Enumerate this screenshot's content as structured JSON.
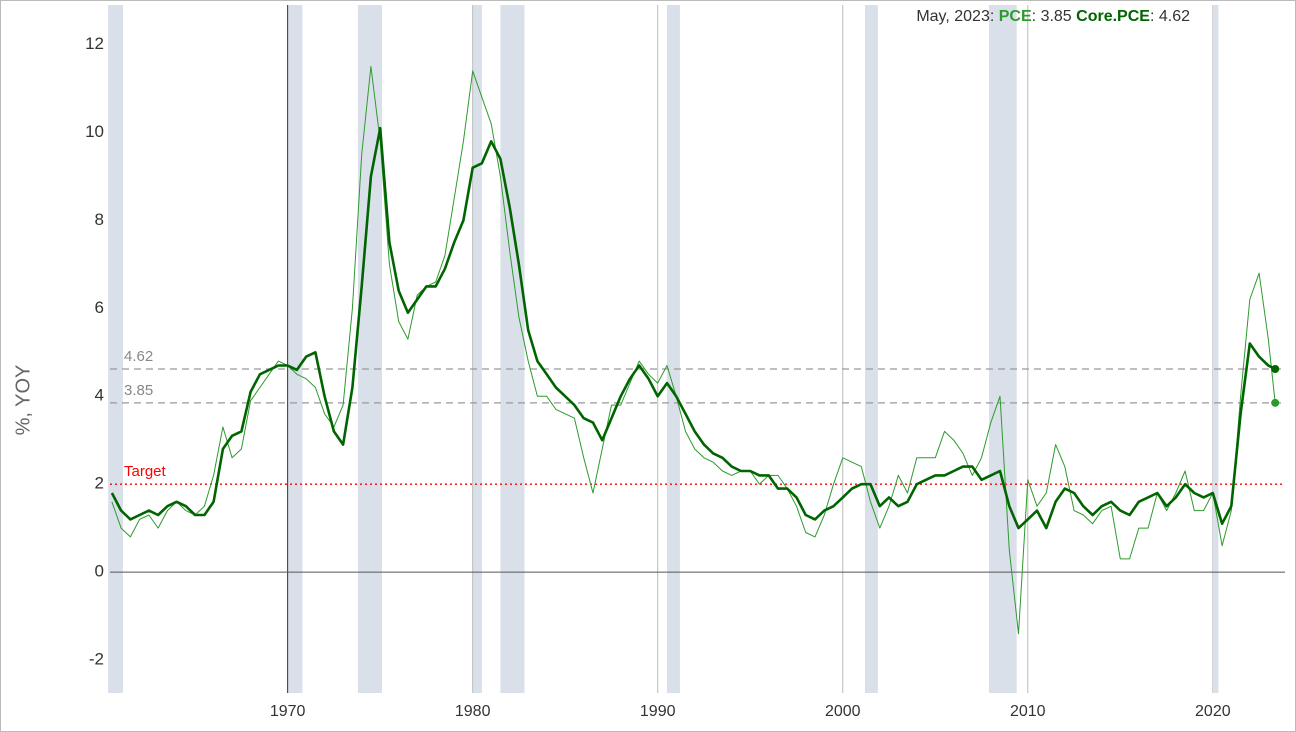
{
  "chart_data": {
    "type": "line",
    "header": {
      "date": "May, 2023:",
      "label_separator": ":"
    },
    "ylabel": "%, YOY",
    "xlim": [
      1960.4,
      2023.9
    ],
    "ylim": [
      -2.75,
      12.9
    ],
    "xticks": [
      1970,
      1980,
      1990,
      2000,
      2010,
      2020
    ],
    "yticks": [
      -2,
      0,
      2,
      4,
      6,
      8,
      10,
      12
    ],
    "grid": {
      "x": true,
      "y": false
    },
    "zero_line": true,
    "recession_color": "#dae0ea",
    "recession_bands": [
      [
        1960.3,
        1961.1
      ],
      [
        1970.0,
        1970.8
      ],
      [
        1973.8,
        1975.1
      ],
      [
        1980.0,
        1980.5
      ],
      [
        1981.5,
        1982.8
      ],
      [
        1990.5,
        1991.2
      ],
      [
        2001.2,
        2001.9
      ],
      [
        2007.9,
        2009.4
      ],
      [
        2020.05,
        2020.3
      ]
    ],
    "reference_lines": [
      {
        "value": 4.62,
        "style": "dashed",
        "color": "#999999"
      },
      {
        "value": 3.85,
        "style": "dashed",
        "color": "#999999"
      },
      {
        "value": 2,
        "label": "Target",
        "style": "dotted",
        "color": "#ff0000"
      }
    ],
    "x": [
      1960.5,
      1961,
      1961.5,
      1962,
      1962.5,
      1963,
      1963.5,
      1964,
      1964.5,
      1965,
      1965.5,
      1966,
      1966.5,
      1967,
      1967.5,
      1968,
      1968.5,
      1969,
      1969.5,
      1970,
      1970.5,
      1971,
      1971.5,
      1972,
      1972.5,
      1973,
      1973.5,
      1974,
      1974.5,
      1975,
      1975.5,
      1976,
      1976.5,
      1977,
      1977.5,
      1978,
      1978.5,
      1979,
      1979.5,
      1980,
      1980.5,
      1981,
      1981.5,
      1982,
      1982.5,
      1983,
      1983.5,
      1984,
      1984.5,
      1985,
      1985.5,
      1986,
      1986.5,
      1987,
      1987.5,
      1988,
      1988.5,
      1989,
      1989.5,
      1990,
      1990.5,
      1991,
      1991.5,
      1992,
      1992.5,
      1993,
      1993.5,
      1994,
      1994.5,
      1995,
      1995.5,
      1996,
      1996.5,
      1997,
      1997.5,
      1998,
      1998.5,
      1999,
      1999.5,
      2000,
      2000.5,
      2001,
      2001.5,
      2002,
      2002.5,
      2003,
      2003.5,
      2004,
      2004.5,
      2005,
      2005.5,
      2006,
      2006.5,
      2007,
      2007.5,
      2008,
      2008.5,
      2009,
      2009.5,
      2010,
      2010.5,
      2011,
      2011.5,
      2012,
      2012.5,
      2013,
      2013.5,
      2014,
      2014.5,
      2015,
      2015.5,
      2016,
      2016.5,
      2017,
      2017.5,
      2018,
      2018.5,
      2019,
      2019.5,
      2020,
      2020.5,
      2021,
      2021.5,
      2022,
      2022.5,
      2023,
      2023.37
    ],
    "series": [
      {
        "name": "PCE",
        "color": "#2e9a2e",
        "width": 1,
        "values": [
          1.6,
          1.0,
          0.8,
          1.2,
          1.3,
          1.0,
          1.4,
          1.6,
          1.4,
          1.3,
          1.5,
          2.2,
          3.3,
          2.6,
          2.8,
          3.9,
          4.2,
          4.5,
          4.8,
          4.7,
          4.5,
          4.4,
          4.2,
          3.6,
          3.3,
          3.8,
          6.0,
          9.5,
          11.5,
          9.8,
          7.0,
          5.7,
          5.3,
          6.3,
          6.5,
          6.6,
          7.2,
          8.5,
          9.8,
          11.4,
          10.8,
          10.2,
          9.0,
          7.3,
          5.8,
          4.8,
          4.0,
          4.0,
          3.7,
          3.6,
          3.5,
          2.6,
          1.8,
          2.8,
          3.8,
          3.8,
          4.3,
          4.8,
          4.5,
          4.3,
          4.7,
          4.0,
          3.2,
          2.8,
          2.6,
          2.5,
          2.3,
          2.2,
          2.3,
          2.3,
          2.0,
          2.2,
          2.2,
          1.9,
          1.5,
          0.9,
          0.8,
          1.3,
          2.0,
          2.6,
          2.5,
          2.4,
          1.6,
          1.0,
          1.5,
          2.2,
          1.8,
          2.6,
          2.6,
          2.6,
          3.2,
          3.0,
          2.7,
          2.2,
          2.6,
          3.4,
          4.0,
          0.5,
          -1.4,
          2.1,
          1.5,
          1.8,
          2.9,
          2.4,
          1.4,
          1.3,
          1.1,
          1.4,
          1.5,
          0.3,
          0.3,
          1.0,
          1.0,
          1.8,
          1.4,
          1.8,
          2.3,
          1.4,
          1.4,
          1.8,
          0.6,
          1.4,
          4.0,
          6.2,
          6.8,
          5.3,
          3.85
        ]
      },
      {
        "name": "Core.PCE",
        "color": "#006400",
        "width": 2.6,
        "values": [
          1.8,
          1.4,
          1.2,
          1.3,
          1.4,
          1.3,
          1.5,
          1.6,
          1.5,
          1.3,
          1.3,
          1.6,
          2.8,
          3.1,
          3.2,
          4.1,
          4.5,
          4.6,
          4.7,
          4.7,
          4.6,
          4.9,
          5.0,
          4.0,
          3.2,
          2.9,
          4.2,
          6.5,
          9.0,
          10.1,
          7.5,
          6.4,
          5.9,
          6.2,
          6.5,
          6.5,
          6.9,
          7.5,
          8.0,
          9.2,
          9.3,
          9.8,
          9.4,
          8.3,
          7.0,
          5.5,
          4.8,
          4.5,
          4.2,
          4.0,
          3.8,
          3.5,
          3.4,
          3.0,
          3.5,
          4.0,
          4.4,
          4.7,
          4.4,
          4.0,
          4.3,
          4.0,
          3.6,
          3.2,
          2.9,
          2.7,
          2.6,
          2.4,
          2.3,
          2.3,
          2.2,
          2.2,
          1.9,
          1.9,
          1.7,
          1.3,
          1.2,
          1.4,
          1.5,
          1.7,
          1.9,
          2.0,
          2.0,
          1.5,
          1.7,
          1.5,
          1.6,
          2.0,
          2.1,
          2.2,
          2.2,
          2.3,
          2.4,
          2.4,
          2.1,
          2.2,
          2.3,
          1.5,
          1.0,
          1.2,
          1.4,
          1.0,
          1.6,
          1.9,
          1.8,
          1.5,
          1.3,
          1.5,
          1.6,
          1.4,
          1.3,
          1.6,
          1.7,
          1.8,
          1.5,
          1.7,
          2.0,
          1.8,
          1.7,
          1.8,
          1.1,
          1.5,
          3.6,
          5.2,
          4.9,
          4.7,
          4.62
        ]
      }
    ]
  }
}
